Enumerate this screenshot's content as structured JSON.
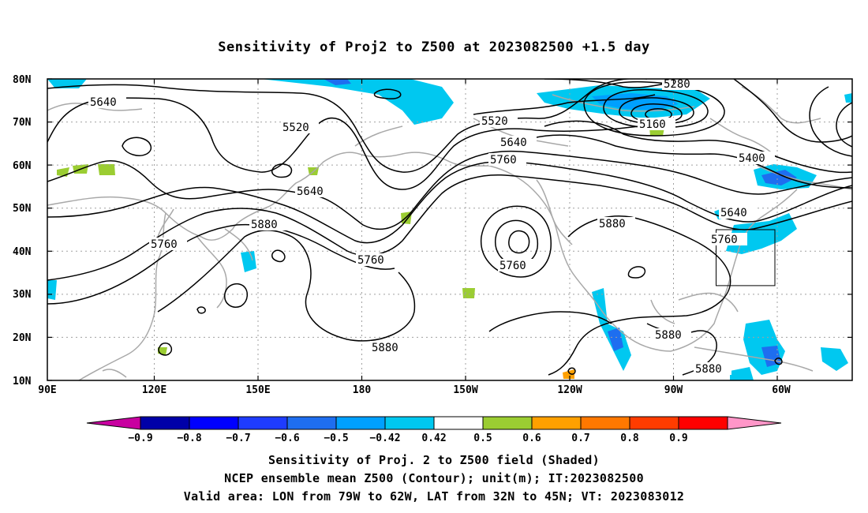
{
  "title": "Sensitivity of Proj2 to Z500 at 2023082500 +1.5 day",
  "map": {
    "lat_labels": [
      "80N",
      "70N",
      "60N",
      "50N",
      "40N",
      "30N",
      "20N",
      "10N"
    ],
    "lon_labels": [
      "90E",
      "120E",
      "150E",
      "180",
      "150W",
      "120W",
      "90W",
      "60W"
    ],
    "contour_labels": [
      "5640",
      "5520",
      "5520",
      "5640",
      "5760",
      "5880",
      "5760",
      "5760",
      "5880",
      "5640",
      "5760",
      "5880",
      "5280",
      "5160",
      "5400",
      "5640",
      "5760",
      "5880",
      "5880"
    ],
    "valid_area": {
      "lon": [
        "79W",
        "62W"
      ],
      "lat": [
        "32N",
        "45N"
      ]
    }
  },
  "colorbar": {
    "labels": [
      "-0.9",
      "-0.8",
      "-0.7",
      "-0.6",
      "-0.5",
      "-0.42",
      "0.42",
      "0.5",
      "0.6",
      "0.7",
      "0.8",
      "0.9"
    ],
    "colors": [
      "#0000a8",
      "#0000ff",
      "#1e3cff",
      "#1e6ef0",
      "#00a0ff",
      "#00c8f0",
      "#ffffff",
      "#9bcd32",
      "#ffa000",
      "#ff7800",
      "#ff3c00",
      "#ff0000"
    ],
    "end_low": "#c800a0",
    "end_high": "#ff96c8"
  },
  "captions": {
    "line1": "Sensitivity of Proj. 2 to Z500 field (Shaded)",
    "line2": "NCEP ensemble mean Z500 (Contour); unit(m); IT:2023082500",
    "line3": "Valid area: LON from 79W to 62W, LAT from 32N to 45N; VT: 2023083012"
  }
}
